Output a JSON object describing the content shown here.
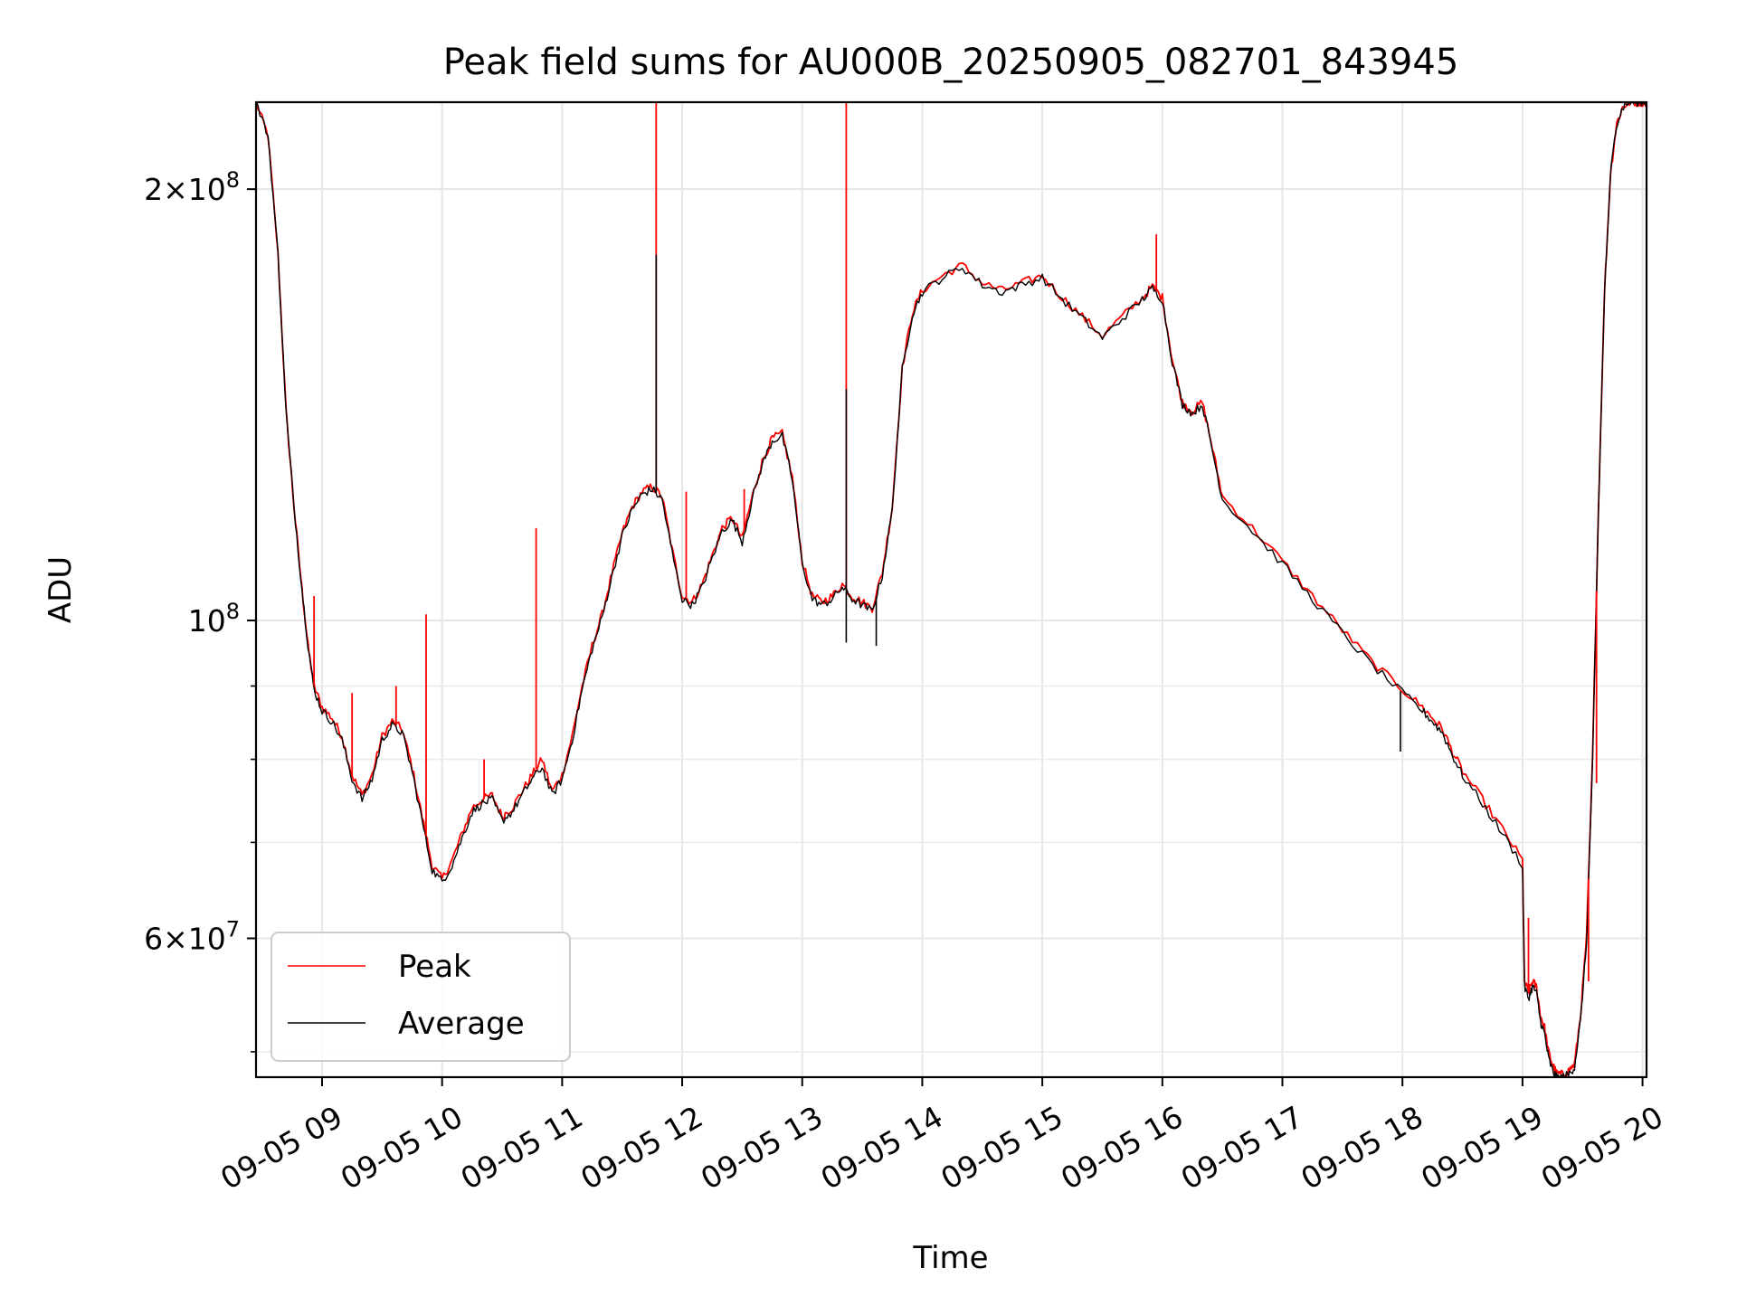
{
  "chart_data": {
    "type": "line",
    "title": "Peak field sums for AU000B_20250905_082701_843945",
    "xlabel": "Time",
    "ylabel": "ADU",
    "yscale": "log",
    "grid": true,
    "legend_position": "lower-left",
    "xlim": [
      "2025-09-05 08:27",
      "2025-09-05 20:02"
    ],
    "ylim": [
      48000000,
      230000000
    ],
    "x_ticks": [
      {
        "time": "2025-09-05 09:00",
        "label": "09-05 09"
      },
      {
        "time": "2025-09-05 10:00",
        "label": "09-05 10"
      },
      {
        "time": "2025-09-05 11:00",
        "label": "09-05 11"
      },
      {
        "time": "2025-09-05 12:00",
        "label": "09-05 12"
      },
      {
        "time": "2025-09-05 13:00",
        "label": "09-05 13"
      },
      {
        "time": "2025-09-05 14:00",
        "label": "09-05 14"
      },
      {
        "time": "2025-09-05 15:00",
        "label": "09-05 15"
      },
      {
        "time": "2025-09-05 16:00",
        "label": "09-05 16"
      },
      {
        "time": "2025-09-05 17:00",
        "label": "09-05 17"
      },
      {
        "time": "2025-09-05 18:00",
        "label": "09-05 18"
      },
      {
        "time": "2025-09-05 19:00",
        "label": "09-05 19"
      },
      {
        "time": "2025-09-05 20:00",
        "label": "09-05 20"
      }
    ],
    "y_major_ticks": [
      {
        "value": 200000000,
        "mantissa": "2",
        "exponent": "8"
      },
      {
        "value": 100000000,
        "mantissa": "",
        "exponent": "8"
      },
      {
        "value": 60000000,
        "mantissa": "6",
        "exponent": "7"
      }
    ],
    "y_minor_ticks": [
      50000000,
      70000000,
      80000000,
      90000000
    ],
    "series": [
      {
        "name": "Peak",
        "color": "#ff0000",
        "x": [
          "2025-09-05 08:27",
          "2025-09-05 08:33",
          "2025-09-05 08:38",
          "2025-09-05 08:42",
          "2025-09-05 08:46",
          "2025-09-05 08:50",
          "2025-09-05 08:53",
          "2025-09-05 08:56",
          "2025-09-05 09:00",
          "2025-09-05 09:05",
          "2025-09-05 09:10",
          "2025-09-05 09:15",
          "2025-09-05 09:20",
          "2025-09-05 09:25",
          "2025-09-05 09:30",
          "2025-09-05 09:35",
          "2025-09-05 09:40",
          "2025-09-05 09:45",
          "2025-09-05 09:50",
          "2025-09-05 09:55",
          "2025-09-05 10:00",
          "2025-09-05 10:05",
          "2025-09-05 10:10",
          "2025-09-05 10:15",
          "2025-09-05 10:20",
          "2025-09-05 10:25",
          "2025-09-05 10:30",
          "2025-09-05 10:35",
          "2025-09-05 10:40",
          "2025-09-05 10:45",
          "2025-09-05 10:50",
          "2025-09-05 10:55",
          "2025-09-05 11:00",
          "2025-09-05 11:05",
          "2025-09-05 11:10",
          "2025-09-05 11:15",
          "2025-09-05 11:20",
          "2025-09-05 11:25",
          "2025-09-05 11:30",
          "2025-09-05 11:35",
          "2025-09-05 11:40",
          "2025-09-05 11:45",
          "2025-09-05 11:50",
          "2025-09-05 11:55",
          "2025-09-05 12:00",
          "2025-09-05 12:05",
          "2025-09-05 12:10",
          "2025-09-05 12:15",
          "2025-09-05 12:20",
          "2025-09-05 12:25",
          "2025-09-05 12:30",
          "2025-09-05 12:35",
          "2025-09-05 12:40",
          "2025-09-05 12:45",
          "2025-09-05 12:50",
          "2025-09-05 12:55",
          "2025-09-05 13:00",
          "2025-09-05 13:05",
          "2025-09-05 13:10",
          "2025-09-05 13:15",
          "2025-09-05 13:20",
          "2025-09-05 13:25",
          "2025-09-05 13:30",
          "2025-09-05 13:35",
          "2025-09-05 13:40",
          "2025-09-05 13:45",
          "2025-09-05 13:50",
          "2025-09-05 13:55",
          "2025-09-05 14:00",
          "2025-09-05 14:10",
          "2025-09-05 14:20",
          "2025-09-05 14:30",
          "2025-09-05 14:40",
          "2025-09-05 14:50",
          "2025-09-05 15:00",
          "2025-09-05 15:10",
          "2025-09-05 15:20",
          "2025-09-05 15:30",
          "2025-09-05 15:40",
          "2025-09-05 15:50",
          "2025-09-05 15:55",
          "2025-09-05 16:00",
          "2025-09-05 16:05",
          "2025-09-05 16:10",
          "2025-09-05 16:15",
          "2025-09-05 16:20",
          "2025-09-05 16:25",
          "2025-09-05 16:30",
          "2025-09-05 16:45",
          "2025-09-05 17:00",
          "2025-09-05 17:15",
          "2025-09-05 17:30",
          "2025-09-05 17:45",
          "2025-09-05 18:00",
          "2025-09-05 18:10",
          "2025-09-05 18:15",
          "2025-09-05 18:20",
          "2025-09-05 18:25",
          "2025-09-05 18:30",
          "2025-09-05 18:40",
          "2025-09-05 18:50",
          "2025-09-05 19:00",
          "2025-09-05 19:01",
          "2025-09-05 19:03",
          "2025-09-05 19:05",
          "2025-09-05 19:07",
          "2025-09-05 19:09",
          "2025-09-05 19:11",
          "2025-09-05 19:13",
          "2025-09-05 19:15",
          "2025-09-05 19:17",
          "2025-09-05 19:20",
          "2025-09-05 19:23",
          "2025-09-05 19:26",
          "2025-09-05 19:29",
          "2025-09-05 19:32",
          "2025-09-05 19:35",
          "2025-09-05 19:38",
          "2025-09-05 19:41",
          "2025-09-05 19:44",
          "2025-09-05 19:47",
          "2025-09-05 19:50",
          "2025-09-05 19:53",
          "2025-09-05 19:56",
          "2025-09-05 19:59",
          "2025-09-05 20:02"
        ],
        "values": [
          230000000,
          218000000,
          180000000,
          140000000,
          120000000,
          105000000,
          96000000,
          90000000,
          87000000,
          85500000,
          83000000,
          78000000,
          75500000,
          78000000,
          83000000,
          85000000,
          84000000,
          79000000,
          73000000,
          67500000,
          66000000,
          68000000,
          71000000,
          74000000,
          75000000,
          75500000,
          73000000,
          74000000,
          76000000,
          78000000,
          80000000,
          76000000,
          78000000,
          83000000,
          90000000,
          96000000,
          101000000,
          108000000,
          115000000,
          120000000,
          123000000,
          124000000,
          122000000,
          112000000,
          104000000,
          103000000,
          106000000,
          111000000,
          116000000,
          118000000,
          114000000,
          122000000,
          129000000,
          134000000,
          135000000,
          126000000,
          110000000,
          104000000,
          103000000,
          104000000,
          106000000,
          104000000,
          103000000,
          102000000,
          108000000,
          120000000,
          150000000,
          164000000,
          170000000,
          174000000,
          177000000,
          172000000,
          170000000,
          172000000,
          174000000,
          168000000,
          163000000,
          158000000,
          163000000,
          168000000,
          171000000,
          168000000,
          152000000,
          142000000,
          140000000,
          142000000,
          132000000,
          122000000,
          116000000,
          110000000,
          104000000,
          98500000,
          93500000,
          89500000,
          87000000,
          85500000,
          84000000,
          81000000,
          78500000,
          75000000,
          71500000,
          68000000,
          56000000,
          55000000,
          56000000,
          55500000,
          53000000,
          52000000,
          50000000,
          49000000,
          48300000,
          48200000,
          48500000,
          49000000,
          53000000,
          60000000,
          80000000,
          120000000,
          170000000,
          205000000,
          222000000,
          228000000,
          230000000,
          230000000,
          230000000,
          230000000
        ]
      },
      {
        "name": "Average",
        "color": "#000000",
        "x": [
          "2025-09-05 08:27",
          "2025-09-05 08:33",
          "2025-09-05 08:38",
          "2025-09-05 08:42",
          "2025-09-05 08:46",
          "2025-09-05 08:50",
          "2025-09-05 08:53",
          "2025-09-05 08:56",
          "2025-09-05 09:00",
          "2025-09-05 09:05",
          "2025-09-05 09:10",
          "2025-09-05 09:15",
          "2025-09-05 09:20",
          "2025-09-05 09:25",
          "2025-09-05 09:30",
          "2025-09-05 09:35",
          "2025-09-05 09:40",
          "2025-09-05 09:45",
          "2025-09-05 09:50",
          "2025-09-05 09:55",
          "2025-09-05 10:00",
          "2025-09-05 10:05",
          "2025-09-05 10:10",
          "2025-09-05 10:15",
          "2025-09-05 10:20",
          "2025-09-05 10:25",
          "2025-09-05 10:30",
          "2025-09-05 10:35",
          "2025-09-05 10:40",
          "2025-09-05 10:45",
          "2025-09-05 10:50",
          "2025-09-05 10:55",
          "2025-09-05 11:00",
          "2025-09-05 11:05",
          "2025-09-05 11:10",
          "2025-09-05 11:15",
          "2025-09-05 11:20",
          "2025-09-05 11:25",
          "2025-09-05 11:30",
          "2025-09-05 11:35",
          "2025-09-05 11:40",
          "2025-09-05 11:45",
          "2025-09-05 11:50",
          "2025-09-05 11:55",
          "2025-09-05 12:00",
          "2025-09-05 12:05",
          "2025-09-05 12:10",
          "2025-09-05 12:15",
          "2025-09-05 12:20",
          "2025-09-05 12:25",
          "2025-09-05 12:30",
          "2025-09-05 12:35",
          "2025-09-05 12:40",
          "2025-09-05 12:45",
          "2025-09-05 12:50",
          "2025-09-05 12:55",
          "2025-09-05 13:00",
          "2025-09-05 13:05",
          "2025-09-05 13:10",
          "2025-09-05 13:15",
          "2025-09-05 13:20",
          "2025-09-05 13:25",
          "2025-09-05 13:30",
          "2025-09-05 13:35",
          "2025-09-05 13:40",
          "2025-09-05 13:45",
          "2025-09-05 13:50",
          "2025-09-05 13:55",
          "2025-09-05 14:00",
          "2025-09-05 14:10",
          "2025-09-05 14:20",
          "2025-09-05 14:30",
          "2025-09-05 14:40",
          "2025-09-05 14:50",
          "2025-09-05 15:00",
          "2025-09-05 15:10",
          "2025-09-05 15:20",
          "2025-09-05 15:30",
          "2025-09-05 15:40",
          "2025-09-05 15:50",
          "2025-09-05 15:55",
          "2025-09-05 16:00",
          "2025-09-05 16:05",
          "2025-09-05 16:10",
          "2025-09-05 16:15",
          "2025-09-05 16:20",
          "2025-09-05 16:25",
          "2025-09-05 16:30",
          "2025-09-05 16:45",
          "2025-09-05 17:00",
          "2025-09-05 17:15",
          "2025-09-05 17:30",
          "2025-09-05 17:45",
          "2025-09-05 18:00",
          "2025-09-05 18:10",
          "2025-09-05 18:15",
          "2025-09-05 18:20",
          "2025-09-05 18:25",
          "2025-09-05 18:30",
          "2025-09-05 18:40",
          "2025-09-05 18:50",
          "2025-09-05 19:00",
          "2025-09-05 19:01",
          "2025-09-05 19:03",
          "2025-09-05 19:05",
          "2025-09-05 19:07",
          "2025-09-05 19:09",
          "2025-09-05 19:11",
          "2025-09-05 19:13",
          "2025-09-05 19:15",
          "2025-09-05 19:17",
          "2025-09-05 19:20",
          "2025-09-05 19:23",
          "2025-09-05 19:26",
          "2025-09-05 19:29",
          "2025-09-05 19:32",
          "2025-09-05 19:35",
          "2025-09-05 19:38",
          "2025-09-05 19:41",
          "2025-09-05 19:44",
          "2025-09-05 19:47",
          "2025-09-05 19:50",
          "2025-09-05 19:53",
          "2025-09-05 19:56",
          "2025-09-05 19:59",
          "2025-09-05 20:02"
        ],
        "values": [
          230000000,
          218000000,
          180000000,
          140000000,
          120000000,
          105000000,
          96000000,
          89500000,
          86500000,
          85000000,
          82500000,
          77500000,
          75000000,
          77500000,
          82500000,
          84500000,
          83500000,
          78500000,
          72500000,
          67000000,
          65700000,
          67500000,
          70500000,
          73500000,
          74500000,
          75000000,
          72500000,
          73500000,
          75500000,
          77500000,
          79000000,
          75500000,
          77500000,
          82500000,
          89500000,
          95500000,
          100500000,
          107500000,
          114500000,
          119500000,
          122500000,
          123500000,
          121500000,
          111500000,
          103500000,
          102500000,
          105500000,
          110500000,
          115500000,
          117500000,
          113500000,
          121500000,
          128500000,
          133500000,
          134500000,
          125500000,
          109500000,
          103500000,
          102500000,
          103500000,
          105500000,
          103500000,
          102500000,
          101500000,
          107500000,
          119500000,
          149500000,
          163500000,
          169500000,
          173500000,
          176500000,
          171500000,
          169500000,
          171500000,
          173500000,
          167500000,
          162500000,
          157500000,
          162500000,
          167500000,
          170500000,
          167500000,
          151500000,
          141500000,
          139500000,
          141500000,
          131500000,
          121500000,
          115500000,
          109500000,
          103500000,
          98000000,
          93000000,
          89000000,
          86500000,
          85000000,
          83500000,
          80500000,
          78000000,
          74500000,
          71000000,
          67500000,
          55500000,
          54500000,
          55500000,
          55000000,
          52500000,
          51500000,
          49500000,
          48500000,
          48000000,
          48000000,
          48200000,
          48800000,
          52500000,
          59500000,
          79500000,
          119500000,
          169500000,
          205000000,
          222000000,
          228000000,
          230000000,
          230000000,
          230000000,
          230000000
        ]
      }
    ],
    "spikes": [
      {
        "series": "Peak",
        "time": "2025-09-05 08:56",
        "value": 104000000
      },
      {
        "series": "Peak",
        "time": "2025-09-05 09:15",
        "value": 89000000
      },
      {
        "series": "Peak",
        "time": "2025-09-05 09:37",
        "value": 90000000
      },
      {
        "series": "Peak",
        "time": "2025-09-05 09:52",
        "value": 101000000
      },
      {
        "series": "Peak",
        "time": "2025-09-05 10:21",
        "value": 80000000
      },
      {
        "series": "Peak",
        "time": "2025-09-05 10:47",
        "value": 116000000
      },
      {
        "series": "Peak",
        "time": "2025-09-05 11:47",
        "value": 230000000
      },
      {
        "series": "Peak",
        "time": "2025-09-05 12:02",
        "value": 123000000
      },
      {
        "series": "Peak",
        "time": "2025-09-05 12:31",
        "value": 123500000
      },
      {
        "series": "Peak",
        "time": "2025-09-05 13:22",
        "value": 230000000
      },
      {
        "series": "Peak",
        "time": "2025-09-05 15:57",
        "value": 186000000
      },
      {
        "series": "Peak",
        "time": "2025-09-05 19:00",
        "value": 68000000
      },
      {
        "series": "Peak",
        "time": "2025-09-05 19:03",
        "value": 62000000
      },
      {
        "series": "Peak",
        "time": "2025-09-05 19:33",
        "value": 56000000
      },
      {
        "series": "Peak",
        "time": "2025-09-05 19:37",
        "value": 77000000
      },
      {
        "series": "Average",
        "time": "2025-09-05 11:47",
        "value": 180000000
      },
      {
        "series": "Average",
        "time": "2025-09-05 13:22",
        "value": 145000000
      },
      {
        "series": "Average",
        "time": "2025-09-05 13:22",
        "value": 96500000
      },
      {
        "series": "Average",
        "time": "2025-09-05 13:37",
        "value": 96000000
      },
      {
        "series": "Average",
        "time": "2025-09-05 17:59",
        "value": 81000000
      }
    ]
  }
}
